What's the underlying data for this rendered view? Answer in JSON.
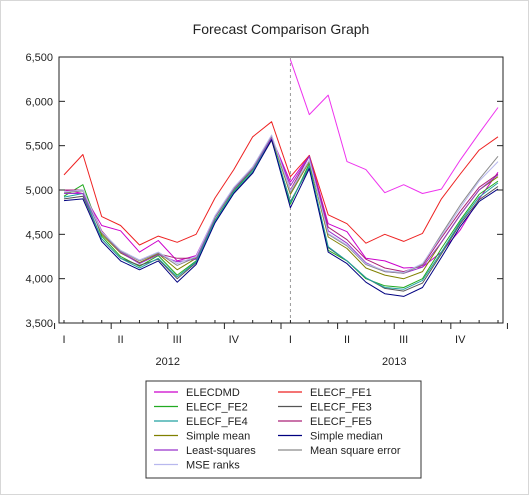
{
  "chart_data": {
    "type": "line",
    "title": "Forecast Comparison Graph",
    "xlabel": "",
    "ylabel": "",
    "ylim": [
      3500,
      6500
    ],
    "yticks": [
      3500,
      4000,
      4500,
      5000,
      5500,
      6000,
      6500
    ],
    "ytick_labels": [
      "3,500",
      "4,000",
      "4,500",
      "5,000",
      "5,500",
      "6,000",
      "6,500"
    ],
    "quarter_labels": [
      "I",
      "II",
      "III",
      "IV",
      "I",
      "II",
      "III",
      "IV"
    ],
    "year_labels": [
      "2012",
      "2013"
    ],
    "forecast_start_index": 12,
    "grid": false,
    "legend_position": "bottom-center",
    "x": [
      "2012-01",
      "2012-02",
      "2012-03",
      "2012-04",
      "2012-05",
      "2012-06",
      "2012-07",
      "2012-08",
      "2012-09",
      "2012-10",
      "2012-11",
      "2012-12",
      "2013-01",
      "2013-02",
      "2013-03",
      "2013-04",
      "2013-05",
      "2013-06",
      "2013-07",
      "2013-08",
      "2013-09",
      "2013-10",
      "2013-11",
      "2013-12"
    ],
    "series": [
      {
        "name": "ELECDMD",
        "color": "#cc00cc",
        "values": [
          5000,
          4960,
          4600,
          4540,
          4300,
          4430,
          4200,
          4260,
          4700,
          5010,
          5250,
          5590,
          5090,
          5390,
          4620,
          4530,
          4230,
          4200,
          4120,
          4130,
          4300,
          4550,
          4900,
          5200
        ]
      },
      {
        "name": "ELECF_FE1",
        "color": "#ee2222",
        "values": [
          5170,
          5400,
          4700,
          4600,
          4380,
          4480,
          4410,
          4500,
          4910,
          5230,
          5600,
          5770,
          5150,
          5390,
          4720,
          4620,
          4400,
          4500,
          4420,
          4510,
          4900,
          5180,
          5450,
          5600
        ]
      },
      {
        "name": "ELECF_FE2",
        "color": "#22aa22",
        "values": [
          4930,
          5060,
          4480,
          4250,
          4140,
          4260,
          4040,
          4200,
          4660,
          4990,
          5230,
          5580,
          4840,
          5300,
          4320,
          4200,
          4000,
          3920,
          3900,
          4000,
          4340,
          4660,
          4950,
          5100
        ]
      },
      {
        "name": "ELECF_FE3",
        "color": "#555555",
        "values": [
          4900,
          4930,
          4450,
          4230,
          4150,
          4220,
          4000,
          4180,
          4650,
          4970,
          5200,
          5560,
          4870,
          5250,
          4350,
          4200,
          4010,
          3890,
          3860,
          3950,
          4280,
          4620,
          4890,
          5040
        ]
      },
      {
        "name": "ELECF_FE4",
        "color": "#20a0a0",
        "values": [
          4920,
          4960,
          4450,
          4230,
          4120,
          4230,
          4020,
          4190,
          4650,
          4980,
          5210,
          5580,
          4860,
          5270,
          4360,
          4200,
          4010,
          3900,
          3880,
          3980,
          4300,
          4640,
          4920,
          5080
        ]
      },
      {
        "name": "ELECF_FE5",
        "color": "#aa2277",
        "values": [
          5000,
          5000,
          4540,
          4300,
          4180,
          4280,
          4230,
          4230,
          4700,
          5020,
          5260,
          5600,
          5000,
          5380,
          4580,
          4440,
          4220,
          4120,
          4080,
          4150,
          4460,
          4760,
          5030,
          5180
        ]
      },
      {
        "name": "Simple mean",
        "color": "#808000",
        "values": [
          4960,
          5000,
          4500,
          4290,
          4180,
          4280,
          4100,
          4230,
          4690,
          5010,
          5240,
          5600,
          4950,
          5320,
          4470,
          4340,
          4120,
          4040,
          4000,
          4080,
          4410,
          4720,
          5000,
          5150
        ]
      },
      {
        "name": "Simple median",
        "color": "#000080",
        "values": [
          4880,
          4900,
          4420,
          4200,
          4100,
          4200,
          3960,
          4160,
          4630,
          4960,
          5190,
          5570,
          4800,
          5240,
          4300,
          4170,
          3960,
          3830,
          3800,
          3900,
          4240,
          4590,
          4870,
          5010
        ]
      },
      {
        "name": "Least-squares",
        "color": "#9933cc",
        "values": [
          4960,
          4960,
          4520,
          4300,
          4170,
          4270,
          4190,
          4220,
          4690,
          5010,
          5240,
          5590,
          5050,
          5380,
          4540,
          4400,
          4180,
          4080,
          4060,
          4130,
          4410,
          4720,
          5000,
          5170
        ]
      },
      {
        "name": "Mean square error",
        "color": "#8a8a8a",
        "values": [
          4970,
          4990,
          4520,
          4310,
          4200,
          4290,
          4150,
          4240,
          4700,
          5020,
          5250,
          5610,
          4970,
          5330,
          4500,
          4370,
          4160,
          4080,
          4060,
          4160,
          4500,
          4830,
          5120,
          5380
        ]
      },
      {
        "name": "MSE ranks",
        "color": "#b8b8ee",
        "values": [
          4980,
          5000,
          4530,
          4320,
          4210,
          4300,
          4170,
          4250,
          4710,
          5030,
          5260,
          5620,
          4990,
          5340,
          4510,
          4380,
          4170,
          4090,
          4070,
          4170,
          4480,
          4800,
          5100,
          5320
        ]
      },
      {
        "name": "",
        "color": "#ee33ee",
        "values": [
          null,
          null,
          null,
          null,
          null,
          null,
          null,
          null,
          null,
          null,
          null,
          null,
          6470,
          5850,
          6070,
          5320,
          5230,
          4970,
          5060,
          4960,
          5010,
          5340,
          5640,
          5930
        ]
      }
    ]
  }
}
